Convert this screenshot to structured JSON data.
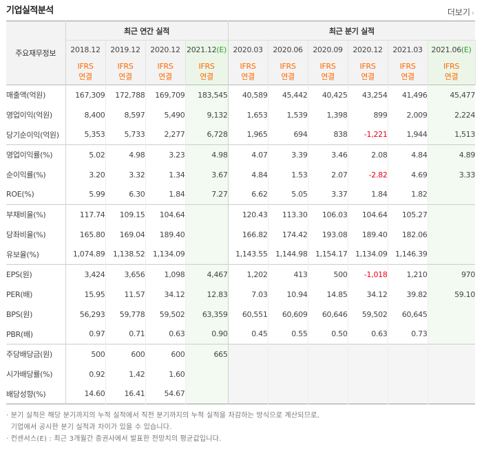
{
  "title": "기업실적분석",
  "more_label": "더보기",
  "header": {
    "label": "주요재무정보",
    "annual_group": "최근 연간 실적",
    "quarter_group": "최근 분기 실적",
    "ifrs_line1": "IFRS",
    "ifrs_line2": "연결",
    "annual_periods": [
      "2018.12",
      "2019.12",
      "2020.12",
      "2021.12"
    ],
    "annual_est_suffix": "(E)",
    "quarter_periods": [
      "2020.03",
      "2020.06",
      "2020.09",
      "2020.12",
      "2021.03",
      "2021.06"
    ],
    "quarter_est_suffix": "(E)"
  },
  "rows": [
    {
      "label": "매출액(억원)",
      "values": [
        "167,309",
        "172,788",
        "169,709",
        "183,545",
        "40,589",
        "45,442",
        "40,425",
        "43,254",
        "41,496",
        "45,477"
      ]
    },
    {
      "label": "영업이익(억원)",
      "values": [
        "8,400",
        "8,597",
        "5,490",
        "9,132",
        "1,653",
        "1,539",
        "1,398",
        "899",
        "2,009",
        "2,224"
      ]
    },
    {
      "label": "당기순이익(억원)",
      "values": [
        "5,353",
        "5,733",
        "2,277",
        "6,728",
        "1,965",
        "694",
        "838",
        "-1,221",
        "1,944",
        "1,513"
      ]
    },
    {
      "label": "영업이익률(%)",
      "values": [
        "5.02",
        "4.98",
        "3.23",
        "4.98",
        "4.07",
        "3.39",
        "3.46",
        "2.08",
        "4.84",
        "4.89"
      ]
    },
    {
      "label": "순이익률(%)",
      "values": [
        "3.20",
        "3.32",
        "1.34",
        "3.67",
        "4.84",
        "1.53",
        "2.07",
        "-2.82",
        "4.69",
        "3.33"
      ]
    },
    {
      "label": "ROE(%)",
      "values": [
        "5.99",
        "6.30",
        "1.84",
        "7.27",
        "6.62",
        "5.05",
        "3.37",
        "1.84",
        "1.82",
        ""
      ]
    },
    {
      "label": "부채비율(%)",
      "values": [
        "117.74",
        "109.15",
        "104.64",
        "",
        "120.43",
        "113.30",
        "106.03",
        "104.64",
        "105.27",
        ""
      ]
    },
    {
      "label": "당좌비율(%)",
      "values": [
        "165.80",
        "169.04",
        "189.40",
        "",
        "166.82",
        "174.42",
        "193.08",
        "189.40",
        "182.06",
        ""
      ]
    },
    {
      "label": "유보율(%)",
      "values": [
        "1,074.89",
        "1,138.52",
        "1,134.09",
        "",
        "1,143.55",
        "1,144.98",
        "1,154.17",
        "1,134.09",
        "1,146.39",
        ""
      ]
    },
    {
      "label": "EPS(원)",
      "values": [
        "3,424",
        "3,656",
        "1,098",
        "4,467",
        "1,202",
        "413",
        "500",
        "-1,018",
        "1,210",
        "970"
      ]
    },
    {
      "label": "PER(배)",
      "values": [
        "15.95",
        "11.57",
        "34.12",
        "12.83",
        "7.03",
        "10.94",
        "14.85",
        "34.12",
        "39.82",
        "59.10"
      ]
    },
    {
      "label": "BPS(원)",
      "values": [
        "56,293",
        "59,778",
        "59,502",
        "63,359",
        "60,551",
        "60,609",
        "60,646",
        "59,502",
        "60,645",
        ""
      ]
    },
    {
      "label": "PBR(배)",
      "values": [
        "0.97",
        "0.71",
        "0.63",
        "0.90",
        "0.45",
        "0.55",
        "0.50",
        "0.63",
        "0.73",
        ""
      ]
    },
    {
      "label": "주당배당금(원)",
      "values": [
        "500",
        "600",
        "600",
        "665",
        "",
        "",
        "",
        "",
        "",
        ""
      ]
    },
    {
      "label": "시가배당률(%)",
      "values": [
        "0.92",
        "1.42",
        "1.60",
        "",
        "",
        "",
        "",
        "",
        "",
        ""
      ]
    },
    {
      "label": "배당성향(%)",
      "values": [
        "14.60",
        "16.41",
        "54.67",
        "",
        "",
        "",
        "",
        "",
        "",
        ""
      ]
    }
  ],
  "notes": [
    "· 분기 실적은 해당 분기까지의 누적 실적에서 직전 분기까지의 누적 실적을 차감하는 방식으로 계산되므로,",
    "  기업에서 공시한 분기 실적과 차이가 있을 수 있습니다.",
    "· 컨센서스(E) : 최근 3개월간 증권사에서 발표한 전망치의 평균값입니다."
  ],
  "colors": {
    "negative": "#e8001c",
    "ifrs": "#ff6a00",
    "estimate": "#2e9a2e",
    "estimate_bg": "#f3faf1"
  }
}
